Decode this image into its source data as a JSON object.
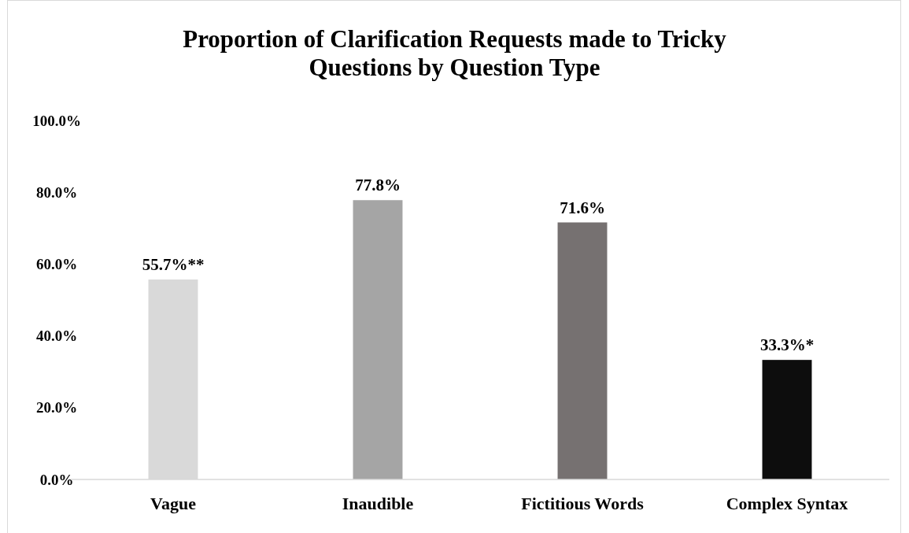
{
  "chart_data": {
    "type": "bar",
    "title": "Proportion of Clarification Requests made to Tricky Questions by Question Type",
    "categories": [
      "Vague",
      "Inaudible",
      "Fictitious Words",
      "Complex Syntax"
    ],
    "values": [
      55.7,
      77.8,
      71.6,
      33.3
    ],
    "colors": [
      "#d9d9d9",
      "#a5a5a5",
      "#767171",
      "#0d0d0d"
    ],
    "value_labels": [
      "55.7%**",
      "77.8%",
      "71.6%",
      "33.3%*"
    ],
    "ylim": [
      0,
      100
    ],
    "yticks": [
      {
        "value": 0,
        "label": "0.0%"
      },
      {
        "value": 20,
        "label": "20.0%"
      },
      {
        "value": 40,
        "label": "40.0%"
      },
      {
        "value": 60,
        "label": "60.0%"
      },
      {
        "value": 80,
        "label": "80.0%"
      },
      {
        "value": 100,
        "label": "100.0%"
      }
    ],
    "grid": false
  }
}
